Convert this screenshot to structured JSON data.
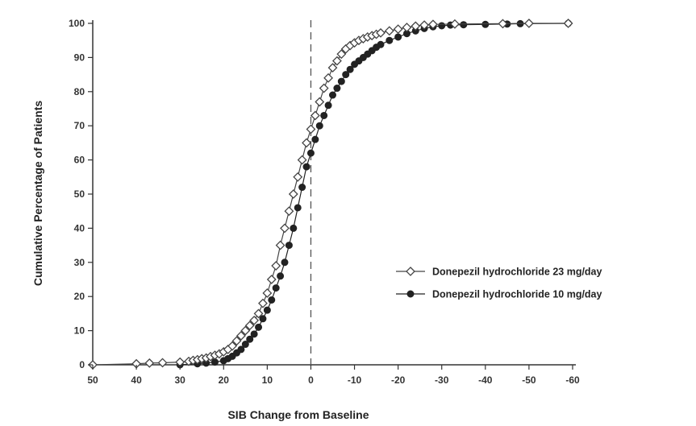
{
  "chart_data": {
    "type": "line",
    "xlabel": "SIB Change from Baseline",
    "ylabel": "Cumulative Percentage of Patients",
    "xlim": [
      50,
      -60
    ],
    "ylim": [
      0,
      100
    ],
    "x_ticks": [
      50,
      40,
      30,
      20,
      10,
      0,
      -10,
      -20,
      -30,
      -40,
      -50,
      -60
    ],
    "y_ticks": [
      0,
      10,
      20,
      30,
      40,
      50,
      60,
      70,
      80,
      90,
      100
    ],
    "reference_line_x": 0,
    "grid": false,
    "legend_position": "right",
    "series": [
      {
        "name": "Donepezil hydrochloride 23 mg/day",
        "marker": "open-diamond",
        "color": "#444444",
        "points": [
          [
            50,
            0
          ],
          [
            40,
            0.3
          ],
          [
            37,
            0.5
          ],
          [
            34,
            0.6
          ],
          [
            30,
            0.8
          ],
          [
            28,
            1
          ],
          [
            27,
            1.3
          ],
          [
            26,
            1.5
          ],
          [
            25,
            1.8
          ],
          [
            24,
            2
          ],
          [
            23,
            2.4
          ],
          [
            22,
            2.8
          ],
          [
            21,
            3.2
          ],
          [
            20,
            3.8
          ],
          [
            19,
            4.5
          ],
          [
            18,
            5.5
          ],
          [
            17,
            7
          ],
          [
            16,
            8.5
          ],
          [
            15,
            10
          ],
          [
            14,
            11.5
          ],
          [
            13,
            13
          ],
          [
            12,
            15
          ],
          [
            11,
            18
          ],
          [
            10,
            21
          ],
          [
            9,
            25
          ],
          [
            8,
            29
          ],
          [
            7,
            35
          ],
          [
            6,
            40
          ],
          [
            5,
            45
          ],
          [
            4,
            50
          ],
          [
            3,
            55
          ],
          [
            2,
            60
          ],
          [
            1,
            65
          ],
          [
            0,
            69
          ],
          [
            -1,
            73
          ],
          [
            -2,
            77
          ],
          [
            -3,
            81
          ],
          [
            -4,
            84
          ],
          [
            -5,
            87
          ],
          [
            -6,
            89
          ],
          [
            -7,
            91
          ],
          [
            -8,
            92.5
          ],
          [
            -9,
            93.5
          ],
          [
            -10,
            94.3
          ],
          [
            -11,
            95
          ],
          [
            -12,
            95.5
          ],
          [
            -13,
            96
          ],
          [
            -14,
            96.4
          ],
          [
            -15,
            96.8
          ],
          [
            -16,
            97.2
          ],
          [
            -18,
            97.8
          ],
          [
            -20,
            98.3
          ],
          [
            -22,
            98.8
          ],
          [
            -24,
            99.2
          ],
          [
            -26,
            99.5
          ],
          [
            -28,
            99.7
          ],
          [
            -33,
            99.8
          ],
          [
            -44,
            99.9
          ],
          [
            -50,
            100
          ],
          [
            -59,
            100
          ]
        ]
      },
      {
        "name": "Donepezil hydrochloride 10 mg/day",
        "marker": "filled-circle",
        "color": "#222222",
        "points": [
          [
            30,
            0
          ],
          [
            26,
            0.3
          ],
          [
            24,
            0.5
          ],
          [
            22,
            0.8
          ],
          [
            20,
            1.2
          ],
          [
            19,
            1.8
          ],
          [
            18,
            2.5
          ],
          [
            17,
            3.5
          ],
          [
            16,
            4.5
          ],
          [
            15,
            6
          ],
          [
            14,
            7.5
          ],
          [
            13,
            9
          ],
          [
            12,
            11
          ],
          [
            11,
            13.5
          ],
          [
            10,
            16
          ],
          [
            9,
            19
          ],
          [
            8,
            22.5
          ],
          [
            7,
            26
          ],
          [
            6,
            30
          ],
          [
            5,
            35
          ],
          [
            4,
            40
          ],
          [
            3,
            46
          ],
          [
            2,
            52
          ],
          [
            1,
            58
          ],
          [
            0,
            62
          ],
          [
            -1,
            66
          ],
          [
            -2,
            70
          ],
          [
            -3,
            73
          ],
          [
            -4,
            76
          ],
          [
            -5,
            79
          ],
          [
            -6,
            81
          ],
          [
            -7,
            83
          ],
          [
            -8,
            85
          ],
          [
            -9,
            86.5
          ],
          [
            -10,
            88
          ],
          [
            -11,
            89
          ],
          [
            -12,
            90
          ],
          [
            -13,
            91
          ],
          [
            -14,
            92
          ],
          [
            -15,
            93
          ],
          [
            -16,
            93.8
          ],
          [
            -18,
            95
          ],
          [
            -20,
            96
          ],
          [
            -22,
            97
          ],
          [
            -24,
            97.8
          ],
          [
            -26,
            98.5
          ],
          [
            -28,
            99
          ],
          [
            -30,
            99.3
          ],
          [
            -32,
            99.5
          ],
          [
            -35,
            99.6
          ],
          [
            -40,
            99.7
          ],
          [
            -45,
            99.8
          ],
          [
            -48,
            99.9
          ],
          [
            -59,
            100
          ]
        ]
      }
    ]
  }
}
